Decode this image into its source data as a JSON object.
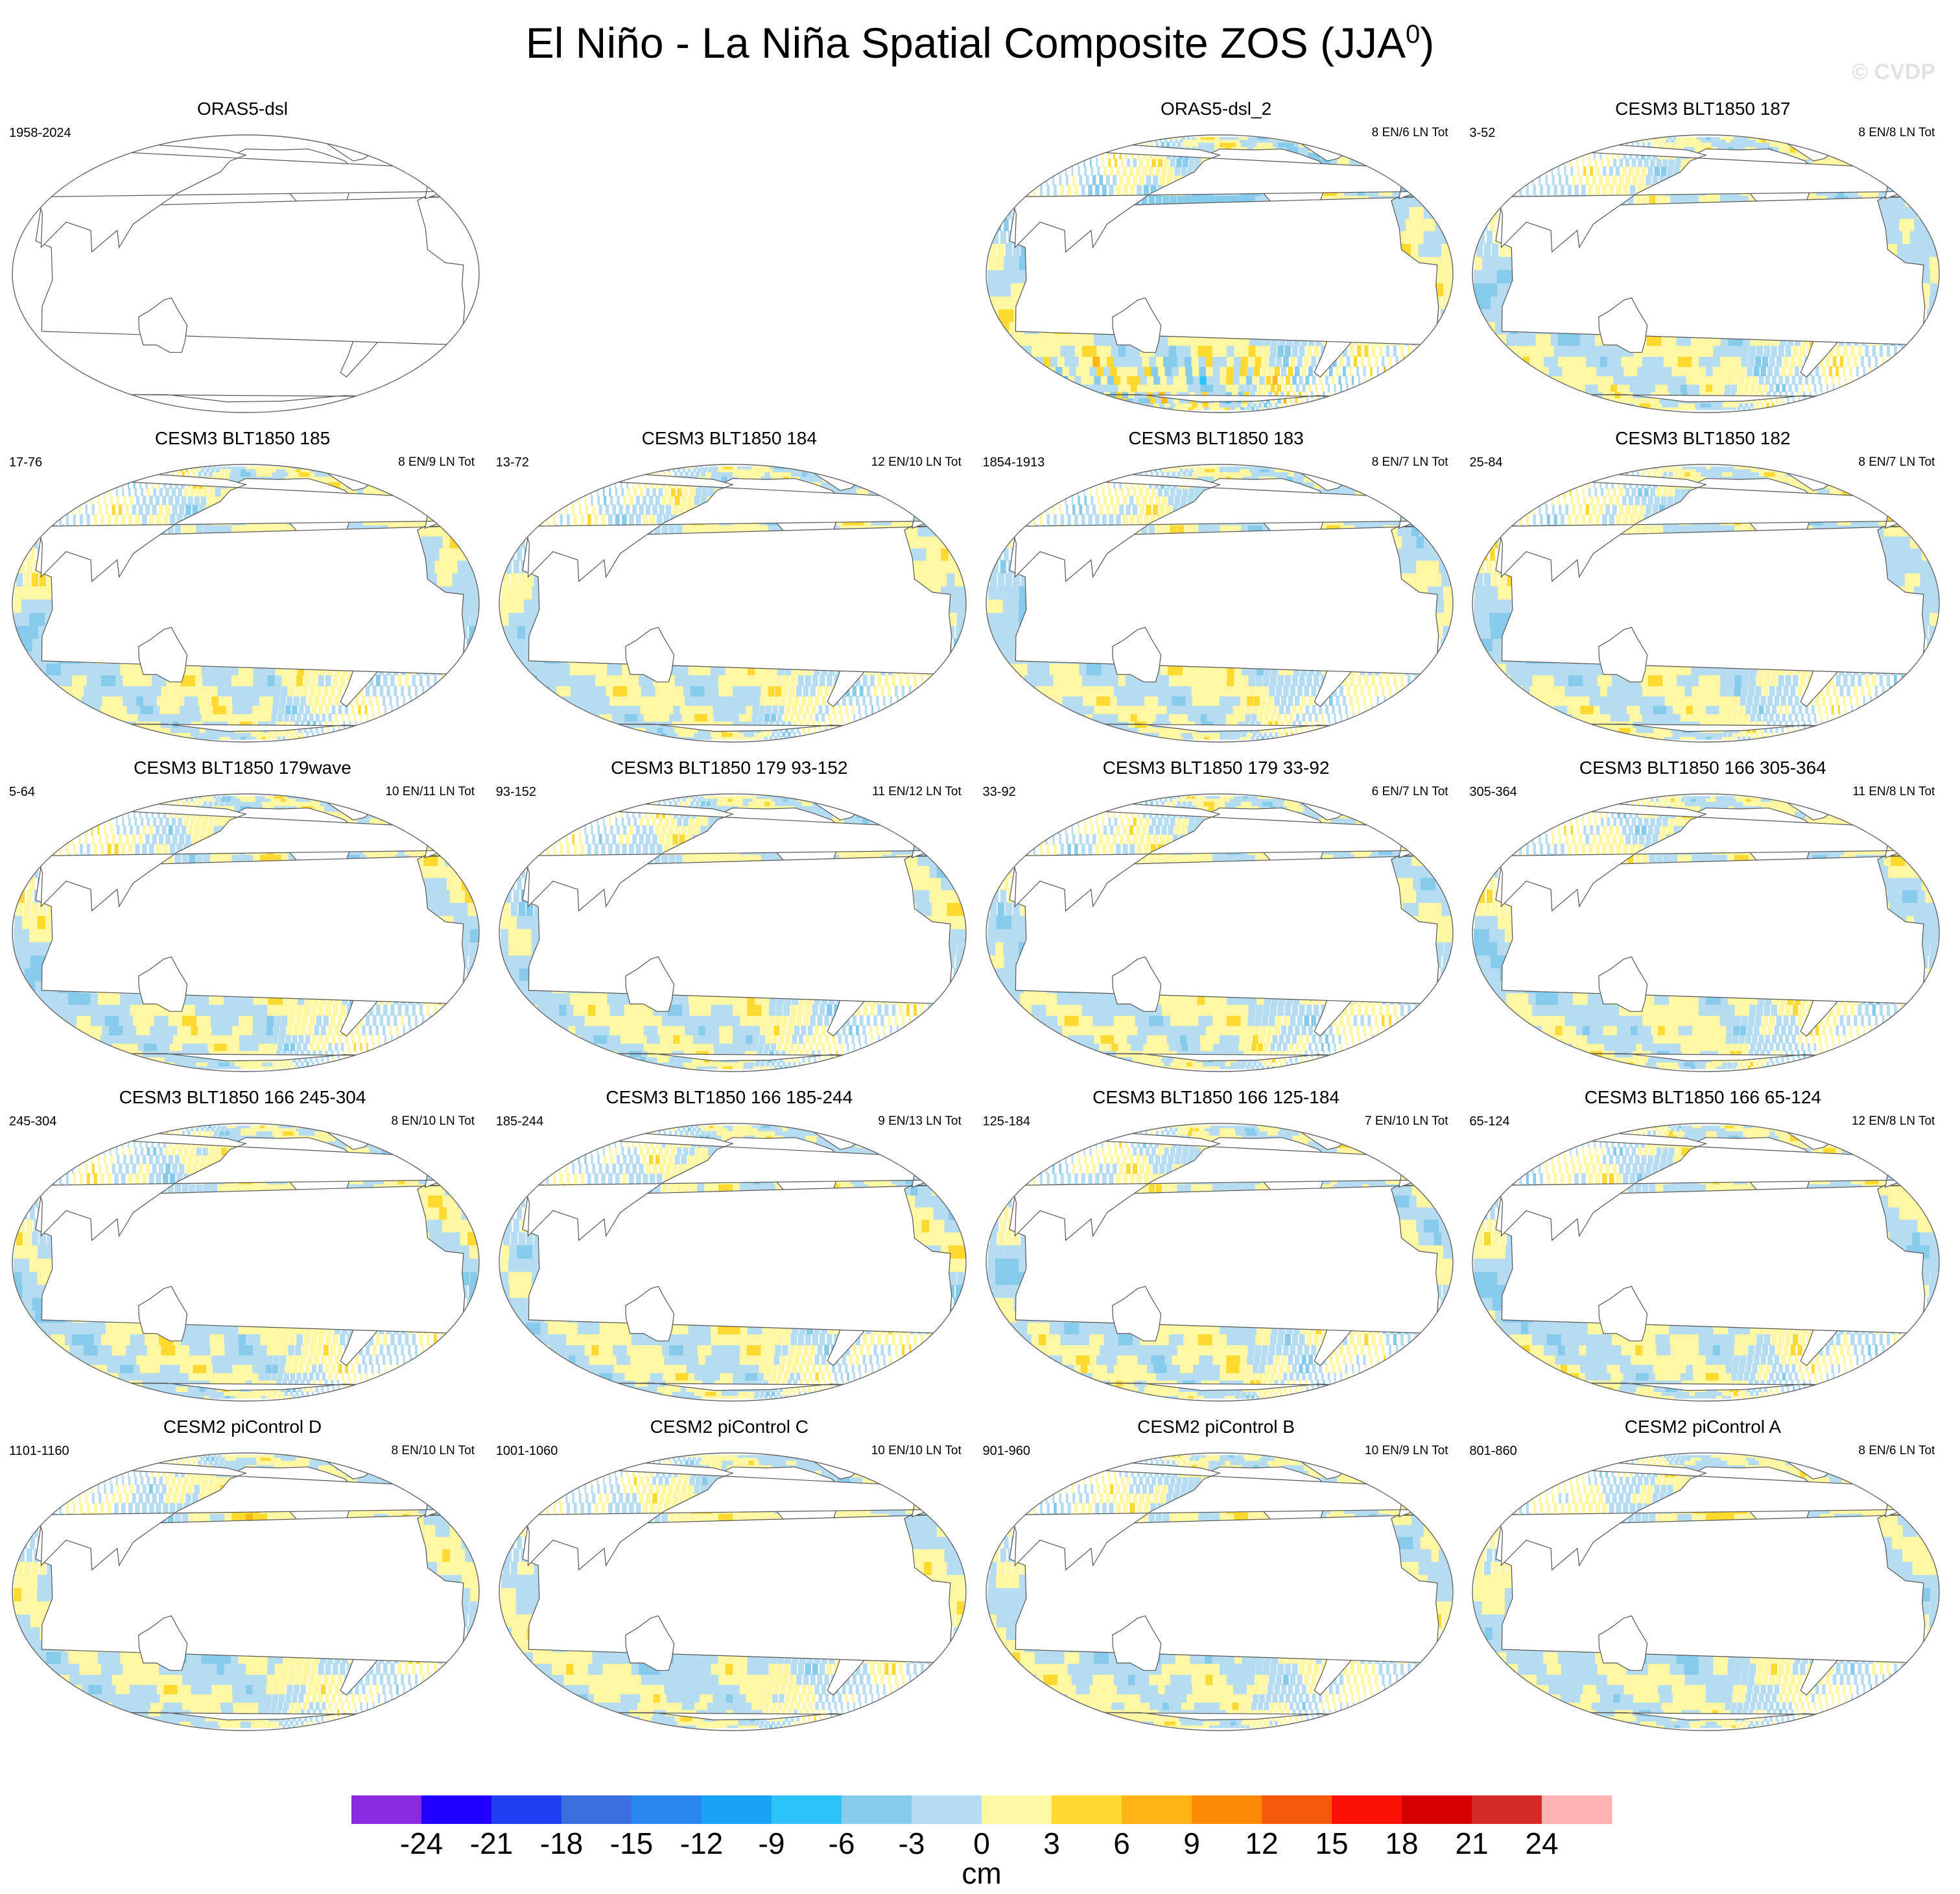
{
  "title": "El Niño - La Niña Spatial Composite ZOS (JJA",
  "title_superscript": "0",
  "title_suffix": ")",
  "watermark": "© CVDP",
  "colors": {
    "ocean_neutral": "#b6dcf1",
    "land": "#ffffff",
    "coast": "#555555"
  },
  "chart_data": {
    "type": "heatmap",
    "projection": "robinson",
    "variable": "ZOS",
    "season": "JJA",
    "panels": [
      {
        "row": 0,
        "col": 0,
        "title": "ORAS5-dsl",
        "period": "1958-2024",
        "counts": "",
        "has_data": false,
        "style": "none"
      },
      {
        "row": 0,
        "col": 2,
        "title": "ORAS5-dsl_2",
        "period": "",
        "counts": "8 EN/6 LN Tot",
        "has_data": true,
        "style": "obs"
      },
      {
        "row": 0,
        "col": 3,
        "title": "CESM3 BLT1850 187",
        "period": "3-52",
        "counts": "8 EN/8 LN Tot",
        "has_data": true,
        "style": "blt"
      },
      {
        "row": 1,
        "col": 0,
        "title": "CESM3 BLT1850 185",
        "period": "17-76",
        "counts": "8 EN/9 LN Tot",
        "has_data": true,
        "style": "blt"
      },
      {
        "row": 1,
        "col": 1,
        "title": "CESM3 BLT1850 184",
        "period": "13-72",
        "counts": "12 EN/10 LN Tot",
        "has_data": true,
        "style": "blt"
      },
      {
        "row": 1,
        "col": 2,
        "title": "CESM3 BLT1850 183",
        "period": "1854-1913",
        "counts": "8 EN/7 LN Tot",
        "has_data": true,
        "style": "blt"
      },
      {
        "row": 1,
        "col": 3,
        "title": "CESM3 BLT1850 182",
        "period": "25-84",
        "counts": "8 EN/7 LN Tot",
        "has_data": true,
        "style": "blt"
      },
      {
        "row": 2,
        "col": 0,
        "title": "CESM3 BLT1850 179wave",
        "period": "5-64",
        "counts": "10 EN/11 LN Tot",
        "has_data": true,
        "style": "blt"
      },
      {
        "row": 2,
        "col": 1,
        "title": "CESM3 BLT1850 179 93-152",
        "period": "93-152",
        "counts": "11 EN/12 LN Tot",
        "has_data": true,
        "style": "blt"
      },
      {
        "row": 2,
        "col": 2,
        "title": "CESM3 BLT1850 179 33-92",
        "period": "33-92",
        "counts": "6 EN/7 LN Tot",
        "has_data": true,
        "style": "blt"
      },
      {
        "row": 2,
        "col": 3,
        "title": "CESM3 BLT1850 166 305-364",
        "period": "305-364",
        "counts": "11 EN/8 LN Tot",
        "has_data": true,
        "style": "blt"
      },
      {
        "row": 3,
        "col": 0,
        "title": "CESM3 BLT1850 166 245-304",
        "period": "245-304",
        "counts": "8 EN/10 LN Tot",
        "has_data": true,
        "style": "blt"
      },
      {
        "row": 3,
        "col": 1,
        "title": "CESM3 BLT1850 166 185-244",
        "period": "185-244",
        "counts": "9 EN/13 LN Tot",
        "has_data": true,
        "style": "blt"
      },
      {
        "row": 3,
        "col": 2,
        "title": "CESM3 BLT1850 166 125-184",
        "period": "125-184",
        "counts": "7 EN/10 LN Tot",
        "has_data": true,
        "style": "blt"
      },
      {
        "row": 3,
        "col": 3,
        "title": "CESM3 BLT1850 166 65-124",
        "period": "65-124",
        "counts": "12 EN/8 LN Tot",
        "has_data": true,
        "style": "blt"
      },
      {
        "row": 4,
        "col": 0,
        "title": "CESM2 piControl D",
        "period": "1101-1160",
        "counts": "8 EN/10 LN Tot",
        "has_data": true,
        "style": "cesm2"
      },
      {
        "row": 4,
        "col": 1,
        "title": "CESM2 piControl C",
        "period": "1001-1060",
        "counts": "10 EN/10 LN Tot",
        "has_data": true,
        "style": "cesm2"
      },
      {
        "row": 4,
        "col": 2,
        "title": "CESM2 piControl B",
        "period": "901-960",
        "counts": "10 EN/9 LN Tot",
        "has_data": true,
        "style": "cesm2"
      },
      {
        "row": 4,
        "col": 3,
        "title": "CESM2 piControl A",
        "period": "801-860",
        "counts": "8 EN/6 LN Tot",
        "has_data": true,
        "style": "cesm2"
      }
    ],
    "colorbar": {
      "levels": [
        -24,
        -21,
        -18,
        -15,
        -12,
        -9,
        -6,
        -3,
        0,
        3,
        6,
        9,
        12,
        15,
        18,
        21,
        24
      ],
      "colors": [
        "#8a2be2",
        "#2200ff",
        "#1f3ff0",
        "#3b6fe0",
        "#2a87f0",
        "#19a3f7",
        "#2cc2fa",
        "#86caec",
        "#b6dcf1",
        "#fff7a3",
        "#ffd92f",
        "#fdb515",
        "#fb8b05",
        "#f55a0a",
        "#fb1106",
        "#d70000",
        "#d42a2a",
        "#ffb3b3"
      ],
      "unit": "cm"
    }
  }
}
